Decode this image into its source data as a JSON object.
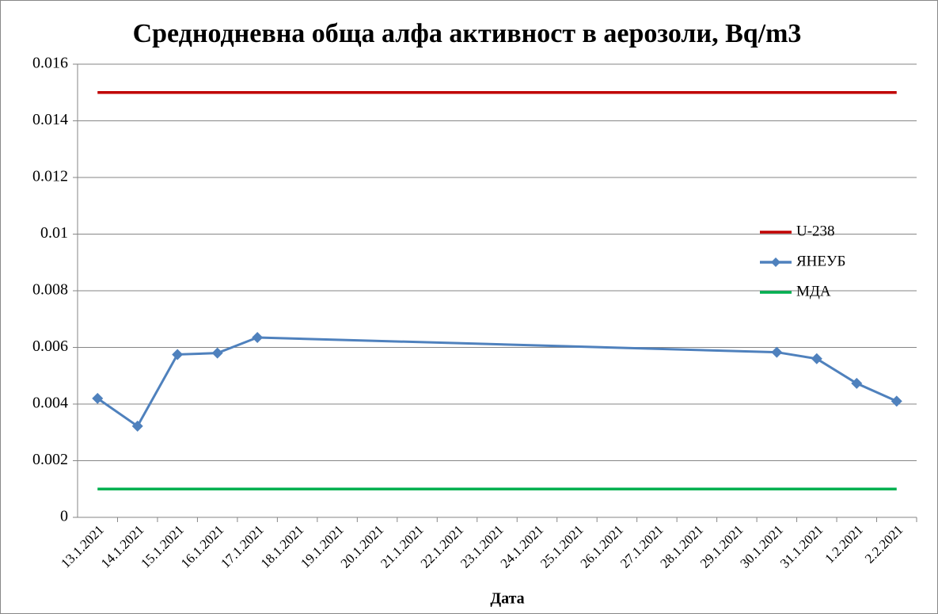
{
  "chart_data": {
    "type": "line",
    "title": "Среднодневна обща алфа активност в аерозоли, Bq/m3",
    "x_label": "Дата",
    "categories": [
      "13.1.2021",
      "14.1.2021",
      "15.1.2021",
      "16.1.2021",
      "17.1.2021",
      "18.1.2021",
      "19.1.2021",
      "20.1.2021",
      "21.1.2021",
      "22.1.2021",
      "23.1.2021",
      "24.1.2021",
      "25.1.2021",
      "26.1.2021",
      "27.1.2021",
      "28.1.2021",
      "29.1.2021",
      "30.1.2021",
      "31.1.2021",
      "1.2.2021",
      "2.2.2021"
    ],
    "series": [
      {
        "name": "U-238",
        "color": "#c00000",
        "values": [
          0.015,
          0.015,
          0.015,
          0.015,
          0.015,
          0.015,
          0.015,
          0.015,
          0.015,
          0.015,
          0.015,
          0.015,
          0.015,
          0.015,
          0.015,
          0.015,
          0.015,
          0.015,
          0.015,
          0.015,
          0.015
        ]
      },
      {
        "name": "ЯНЕУБ",
        "color": "#4f81bd",
        "marker": "diamond",
        "x": [
          "13.1.2021",
          "14.1.2021",
          "15.1.2021",
          "16.1.2021",
          "17.1.2021",
          "30.1.2021",
          "31.1.2021",
          "1.2.2021",
          "2.2.2021"
        ],
        "values": [
          0.0042,
          0.00322,
          0.00575,
          0.0058,
          0.00635,
          0.00583,
          0.0056,
          0.00473,
          0.0041
        ]
      },
      {
        "name": "МДА",
        "color": "#00b050",
        "values": [
          0.001,
          0.001,
          0.001,
          0.001,
          0.001,
          0.001,
          0.001,
          0.001,
          0.001,
          0.001,
          0.001,
          0.001,
          0.001,
          0.001,
          0.001,
          0.001,
          0.001,
          0.001,
          0.001,
          0.001,
          0.001
        ]
      }
    ],
    "ylim": [
      0,
      0.016
    ],
    "yticks": [
      0,
      0.002,
      0.004,
      0.006,
      0.008,
      0.01,
      0.012,
      0.014,
      0.016
    ],
    "grid": true,
    "legend": "right"
  }
}
